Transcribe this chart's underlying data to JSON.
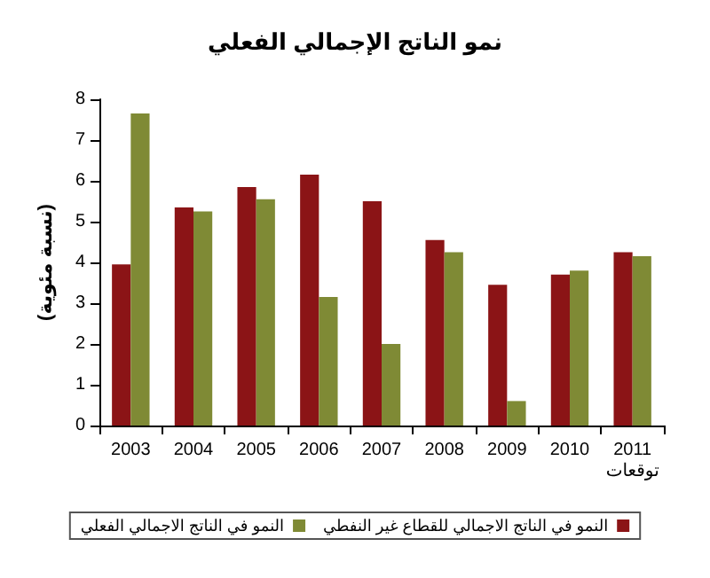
{
  "chart_data": {
    "type": "bar",
    "title": "نمو الناتج الإجمالي الفعلي",
    "ylabel": "(نسبة مئوية)",
    "categories": [
      "2003",
      "2004",
      "2005",
      "2006",
      "2007",
      "2008",
      "2009",
      "2010",
      "2011\nتوقعات"
    ],
    "series": [
      {
        "name": "النمو في الناتج الاجمالي للقطاع غير النفطي",
        "color": "#8b1416",
        "values": [
          3.95,
          5.35,
          5.85,
          6.15,
          5.5,
          4.55,
          3.45,
          3.7,
          4.25
        ]
      },
      {
        "name": "النمو في الناتج الاجمالي الفعلي",
        "color": "#7f8a35",
        "values": [
          7.65,
          5.25,
          5.55,
          3.15,
          2.0,
          4.25,
          0.6,
          3.8,
          4.15
        ]
      }
    ],
    "ylim": [
      0,
      8
    ],
    "yticks": [
      0,
      1,
      2,
      3,
      4,
      5,
      6,
      7,
      8
    ],
    "grid": false,
    "legend": "bottom"
  }
}
